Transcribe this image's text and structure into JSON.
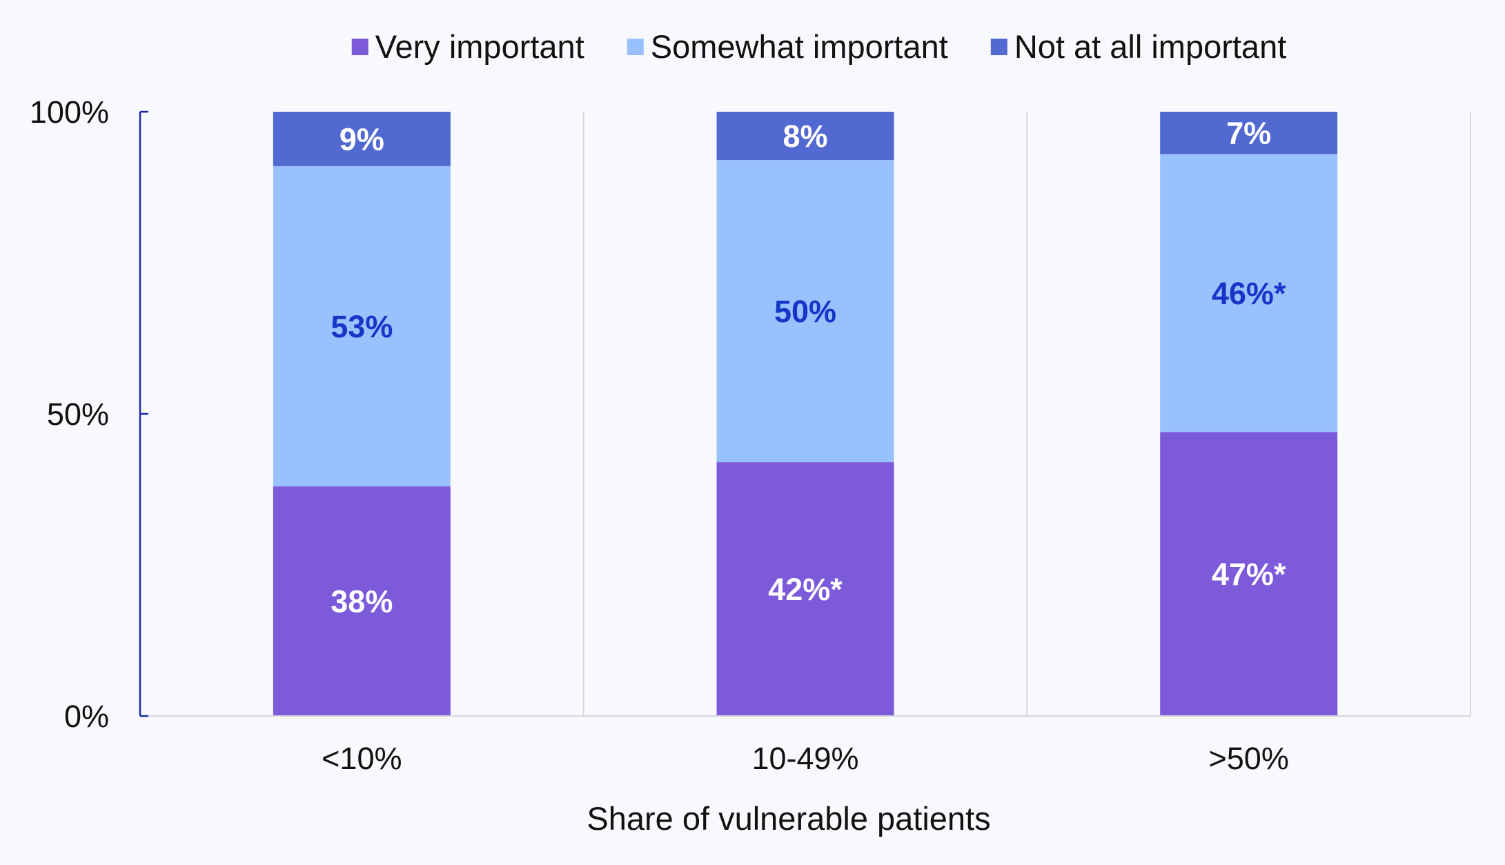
{
  "chart_data": {
    "type": "bar",
    "stacked": true,
    "categories": [
      "<10%",
      "10-49%",
      ">50%"
    ],
    "series": [
      {
        "name": "Very important",
        "color": "#7c5ad9",
        "label_color": "#ffffff",
        "values": [
          38,
          42,
          47
        ],
        "labels": [
          "38%",
          "42%*",
          "47%*"
        ]
      },
      {
        "name": "Somewhat important",
        "color": "#99c1fd",
        "label_color": "#1537c8",
        "values": [
          53,
          50,
          46
        ],
        "labels": [
          "53%",
          "50%",
          "46%*"
        ]
      },
      {
        "name": "Not at all important",
        "color": "#5169d0",
        "label_color": "#ffffff",
        "values": [
          9,
          8,
          7
        ],
        "labels": [
          "9%",
          "8%",
          "7%"
        ]
      }
    ],
    "xlabel": "Share of vulnerable patients",
    "ylabel": "",
    "ylim": [
      0,
      100
    ],
    "yticks": [
      0,
      50,
      100
    ],
    "ytick_labels": [
      "0%",
      "50%",
      "100%"
    ],
    "legend_position": "top",
    "grid": "vertical separators between categories",
    "axis_color": "#1a2aa8",
    "grid_color": "#d5d8de"
  }
}
